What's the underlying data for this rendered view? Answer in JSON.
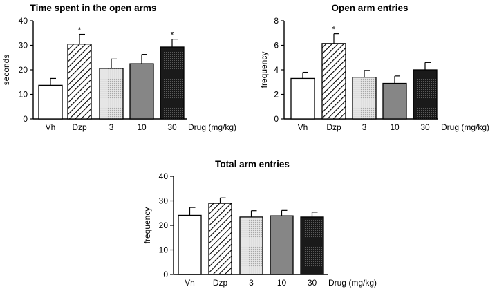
{
  "chart_data": [
    {
      "type": "bar",
      "title": "Time spent in the open arms",
      "xlabel": "Drug (mg/kg)",
      "ylabel": "seconds",
      "ylim": [
        0,
        40
      ],
      "yticks": [
        "0",
        "10",
        "20",
        "30",
        "40"
      ],
      "categories": [
        "Vh",
        "Dzp",
        "3",
        "10",
        "30"
      ],
      "values": [
        13.7,
        30.5,
        20.6,
        22.5,
        29.3
      ],
      "errors": [
        2.8,
        4.0,
        3.8,
        3.8,
        3.2
      ],
      "significance": [
        "",
        "*",
        "",
        "",
        "*"
      ],
      "fills": [
        "white",
        "hatch",
        "light-dotted",
        "gray",
        "dark-dotted"
      ],
      "grid": false,
      "legend": "none"
    },
    {
      "type": "bar",
      "title": "Open arm entries",
      "xlabel": "Drug (mg/kg)",
      "ylabel": "frequency",
      "ylim": [
        0,
        8
      ],
      "yticks": [
        "0",
        "2",
        "4",
        "6",
        "8"
      ],
      "categories": [
        "Vh",
        "Dzp",
        "3",
        "10",
        "30"
      ],
      "values": [
        3.3,
        6.15,
        3.4,
        2.9,
        4.0
      ],
      "errors": [
        0.5,
        0.8,
        0.55,
        0.6,
        0.6
      ],
      "significance": [
        "",
        "*",
        "",
        "",
        ""
      ],
      "fills": [
        "white",
        "hatch",
        "light-dotted",
        "gray",
        "dark-dotted"
      ],
      "grid": false,
      "legend": "none"
    },
    {
      "type": "bar",
      "title": "Total arm entries",
      "xlabel": "Drug (mg/kg)",
      "ylabel": "frequency",
      "ylim": [
        0,
        40
      ],
      "yticks": [
        "0",
        "10",
        "20",
        "30",
        "40"
      ],
      "categories": [
        "Vh",
        "Dzp",
        "3",
        "10",
        "30"
      ],
      "values": [
        24.1,
        29.0,
        23.4,
        23.9,
        23.4
      ],
      "errors": [
        3.2,
        2.2,
        2.6,
        2.2,
        2.0
      ],
      "significance": [
        "",
        "",
        "",
        "",
        ""
      ],
      "fills": [
        "white",
        "hatch",
        "light-dotted",
        "gray",
        "dark-dotted"
      ],
      "grid": false,
      "legend": "none"
    }
  ]
}
